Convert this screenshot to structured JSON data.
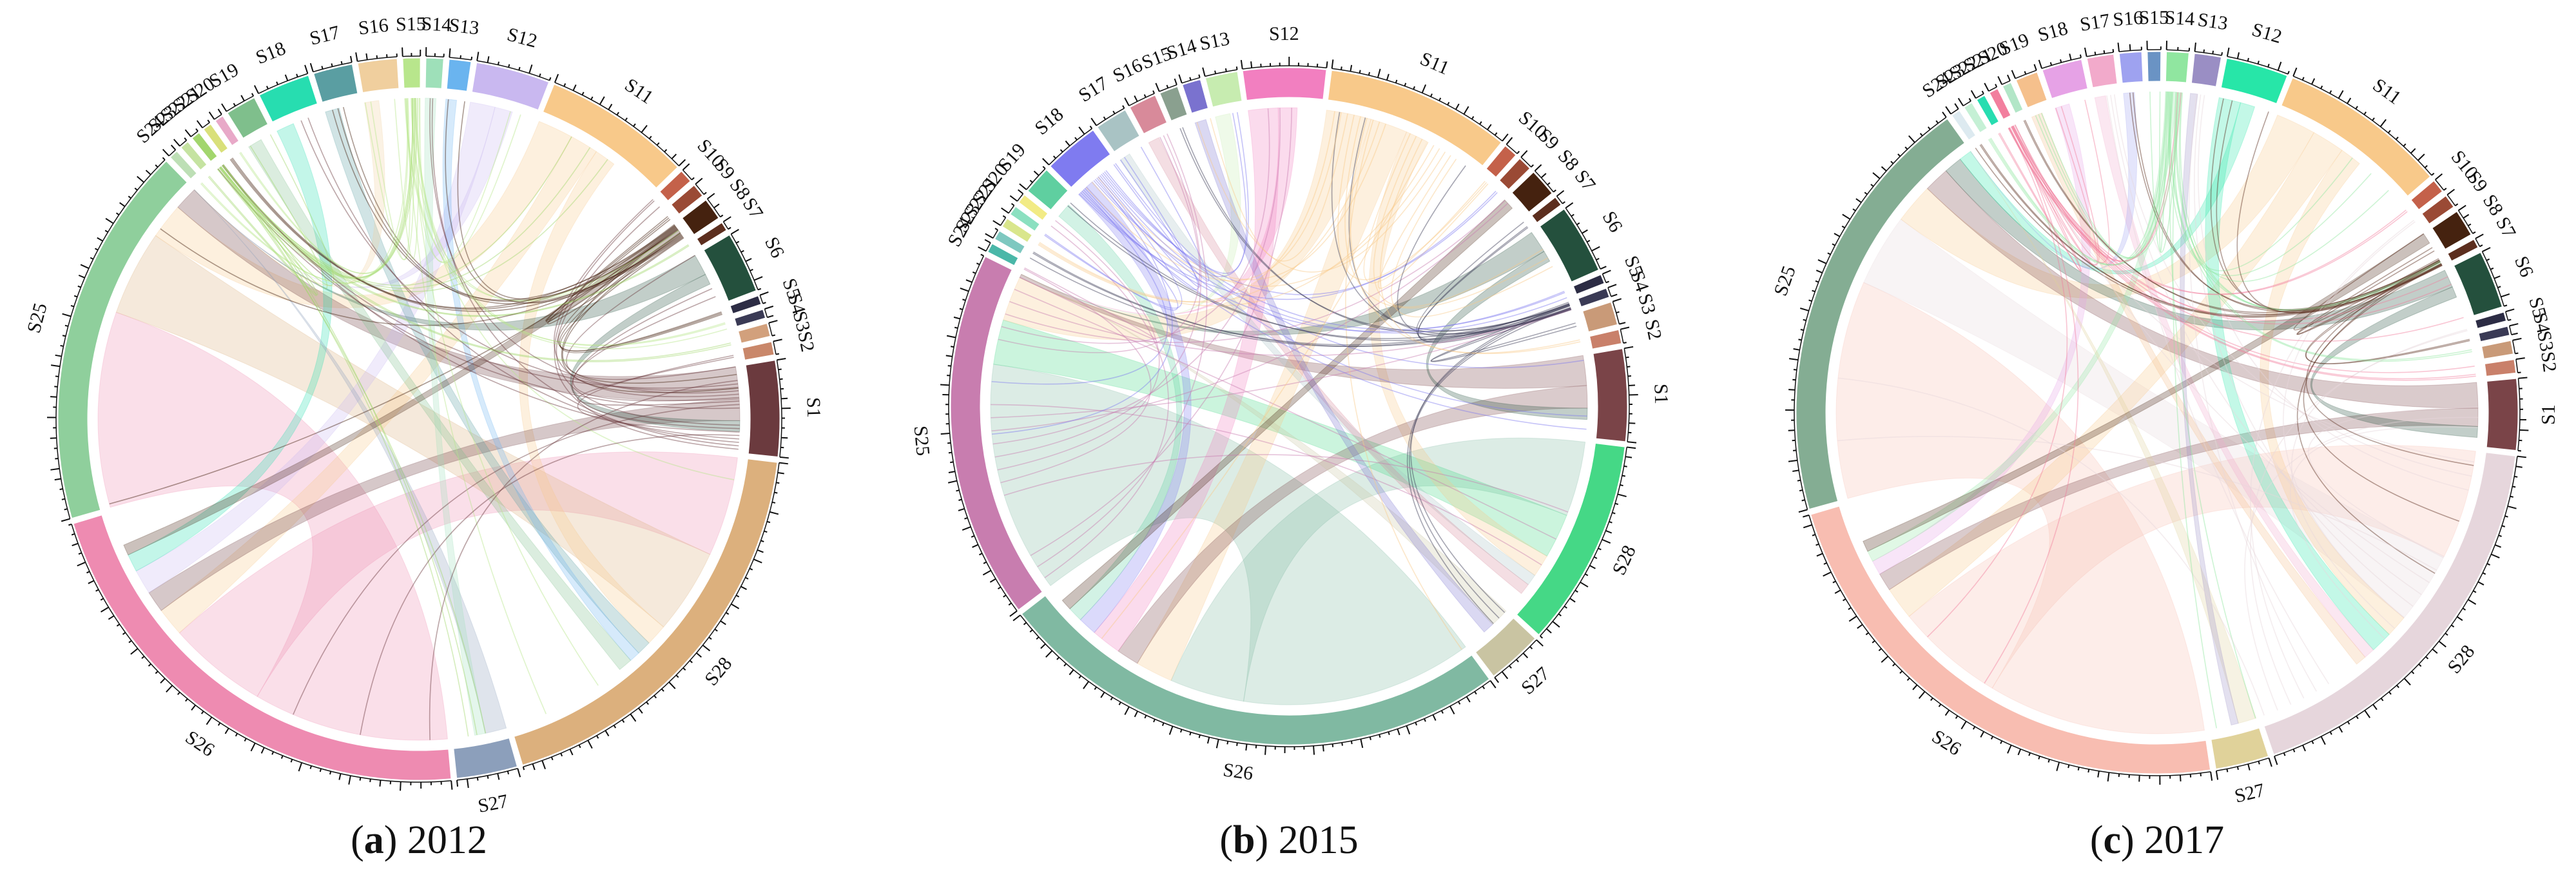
{
  "chart_data": [
    {
      "type": "chord",
      "panel_letter": "a",
      "year": "2012",
      "segments": [
        {
          "name": "S1",
          "size": 22,
          "color": "#6b3a3e"
        },
        {
          "name": "S2",
          "size": 3,
          "color": "#c9876a"
        },
        {
          "name": "S3",
          "size": 3,
          "color": "#d2a07c"
        },
        {
          "name": "S4",
          "size": 2,
          "color": "#3a3a55"
        },
        {
          "name": "S5",
          "size": 2,
          "color": "#2c2c44"
        },
        {
          "name": "S6",
          "size": 14,
          "color": "#24503d"
        },
        {
          "name": "S7",
          "size": 2,
          "color": "#5c2e1e"
        },
        {
          "name": "S8",
          "size": 5,
          "color": "#45220f"
        },
        {
          "name": "S9",
          "size": 3,
          "color": "#9a4a35"
        },
        {
          "name": "S10",
          "size": 3,
          "color": "#c4614a"
        },
        {
          "name": "S11",
          "size": 34,
          "color": "#f8c98a"
        },
        {
          "name": "S12",
          "size": 17,
          "color": "#c9b8f0"
        },
        {
          "name": "S13",
          "size": 5,
          "color": "#6ab4ef"
        },
        {
          "name": "S14",
          "size": 4,
          "color": "#9ee0b9"
        },
        {
          "name": "S15",
          "size": 4,
          "color": "#b8e68c"
        },
        {
          "name": "S16",
          "size": 9,
          "color": "#f0cf9e"
        },
        {
          "name": "S17",
          "size": 9,
          "color": "#5a9ea2"
        },
        {
          "name": "S18",
          "size": 12,
          "color": "#27ddb0"
        },
        {
          "name": "S19",
          "size": 7,
          "color": "#7fbf8c"
        },
        {
          "name": "S20",
          "size": 2,
          "color": "#e8a9c8"
        },
        {
          "name": "S21",
          "size": 2,
          "color": "#d9e07a"
        },
        {
          "name": "S22",
          "size": 2,
          "color": "#a2d66d"
        },
        {
          "name": "S23",
          "size": 2,
          "color": "#c5e3a1"
        },
        {
          "name": "S24",
          "size": 2,
          "color": "#bddfb5"
        },
        {
          "name": "S25",
          "size": 88,
          "color": "#8fcf9c"
        },
        {
          "name": "S26",
          "size": 112,
          "color": "#ee8bb1"
        },
        {
          "name": "S27",
          "size": 14,
          "color": "#8c9fbb"
        },
        {
          "name": "S28",
          "size": 95,
          "color": "#dcb07d"
        }
      ],
      "labeled": [
        "S1",
        "S6",
        "S10",
        "S11",
        "S12",
        "S13",
        "S14",
        "S15",
        "S16",
        "S17",
        "S18",
        "S19",
        "S25",
        "S26",
        "S27",
        "S28"
      ],
      "ribbons": [
        {
          "from": "S26",
          "to": "S25",
          "value": 55
        },
        {
          "from": "S26",
          "to": "S28",
          "value": 28
        },
        {
          "from": "S28",
          "to": "S25",
          "value": 24
        },
        {
          "from": "S11",
          "to": "S25",
          "value": 10
        },
        {
          "from": "S11",
          "to": "S26",
          "value": 8
        },
        {
          "from": "S11",
          "to": "S28",
          "value": 6
        },
        {
          "from": "S1",
          "to": "S25",
          "value": 9
        },
        {
          "from": "S1",
          "to": "S26",
          "value": 6
        },
        {
          "from": "S6",
          "to": "S25",
          "value": 6
        },
        {
          "from": "S6",
          "to": "S1",
          "value": 3
        },
        {
          "from": "S12",
          "to": "S26",
          "value": 7
        },
        {
          "from": "S12",
          "to": "S25",
          "value": 5
        },
        {
          "from": "S18",
          "to": "S26",
          "value": 5
        },
        {
          "from": "S17",
          "to": "S28",
          "value": 4
        },
        {
          "from": "S16",
          "to": "S25",
          "value": 4
        },
        {
          "from": "S27",
          "to": "S25",
          "value": 6
        },
        {
          "from": "S13",
          "to": "S28",
          "value": 3
        },
        {
          "from": "S19",
          "to": "S28",
          "value": 4
        },
        {
          "from": "S8",
          "to": "S26",
          "value": 3
        },
        {
          "from": "S14",
          "to": "S27",
          "value": 3
        }
      ]
    },
    {
      "type": "chord",
      "panel_letter": "b",
      "year": "2015",
      "segments": [
        {
          "name": "S1",
          "size": 20,
          "color": "#7a4448"
        },
        {
          "name": "S2",
          "size": 3,
          "color": "#c9806a"
        },
        {
          "name": "S3",
          "size": 5,
          "color": "#c99a78"
        },
        {
          "name": "S4",
          "size": 2,
          "color": "#3a3a55"
        },
        {
          "name": "S5",
          "size": 2,
          "color": "#2c2c44"
        },
        {
          "name": "S6",
          "size": 15,
          "color": "#24503d"
        },
        {
          "name": "S7",
          "size": 2,
          "color": "#5c2e1e"
        },
        {
          "name": "S8",
          "size": 6,
          "color": "#45220f"
        },
        {
          "name": "S9",
          "size": 3,
          "color": "#9a4a35"
        },
        {
          "name": "S10",
          "size": 3,
          "color": "#c4614a"
        },
        {
          "name": "S11",
          "size": 40,
          "color": "#f8c98a"
        },
        {
          "name": "S12",
          "size": 18,
          "color": "#f27fc0"
        },
        {
          "name": "S13",
          "size": 7,
          "color": "#c7ecb0"
        },
        {
          "name": "S14",
          "size": 4,
          "color": "#7a72cf"
        },
        {
          "name": "S15",
          "size": 4,
          "color": "#8aa08f"
        },
        {
          "name": "S16",
          "size": 6,
          "color": "#d88a9a"
        },
        {
          "name": "S17",
          "size": 7,
          "color": "#a9c3c4"
        },
        {
          "name": "S18",
          "size": 12,
          "color": "#7f7bf0"
        },
        {
          "name": "S19",
          "size": 6,
          "color": "#5fcfa0"
        },
        {
          "name": "S20",
          "size": 2,
          "color": "#f2eb85"
        },
        {
          "name": "S21",
          "size": 2,
          "color": "#8be0c0"
        },
        {
          "name": "S22",
          "size": 2,
          "color": "#d9e68c"
        },
        {
          "name": "S23",
          "size": 2,
          "color": "#7ec8c0"
        },
        {
          "name": "S24",
          "size": 2,
          "color": "#4ab7a8"
        },
        {
          "name": "S25",
          "size": 80,
          "color": "#c87daf"
        },
        {
          "name": "S26",
          "size": 112,
          "color": "#80b9a2"
        },
        {
          "name": "S27",
          "size": 12,
          "color": "#c9c4a2"
        },
        {
          "name": "S28",
          "size": 45,
          "color": "#45d886"
        }
      ],
      "labeled": [
        "S1",
        "S6",
        "S10",
        "S11",
        "S12",
        "S13",
        "S14",
        "S15",
        "S16",
        "S17",
        "S18",
        "S19",
        "S25",
        "S26",
        "S27",
        "S28"
      ],
      "ribbons": [
        {
          "from": "S26",
          "to": "S25",
          "value": 62
        },
        {
          "from": "S26",
          "to": "S28",
          "value": 20
        },
        {
          "from": "S28",
          "to": "S25",
          "value": 12
        },
        {
          "from": "S11",
          "to": "S25",
          "value": 12
        },
        {
          "from": "S11",
          "to": "S26",
          "value": 10
        },
        {
          "from": "S11",
          "to": "S28",
          "value": 6
        },
        {
          "from": "S1",
          "to": "S25",
          "value": 8
        },
        {
          "from": "S1",
          "to": "S26",
          "value": 6
        },
        {
          "from": "S6",
          "to": "S25",
          "value": 6
        },
        {
          "from": "S6",
          "to": "S1",
          "value": 3
        },
        {
          "from": "S12",
          "to": "S26",
          "value": 8
        },
        {
          "from": "S12",
          "to": "S25",
          "value": 5
        },
        {
          "from": "S18",
          "to": "S26",
          "value": 5
        },
        {
          "from": "S17",
          "to": "S28",
          "value": 3
        },
        {
          "from": "S13",
          "to": "S25",
          "value": 4
        },
        {
          "from": "S27",
          "to": "S25",
          "value": 5
        },
        {
          "from": "S16",
          "to": "S28",
          "value": 3
        },
        {
          "from": "S19",
          "to": "S26",
          "value": 4
        },
        {
          "from": "S8",
          "to": "S26",
          "value": 3
        },
        {
          "from": "S14",
          "to": "S27",
          "value": 3
        }
      ]
    },
    {
      "type": "chord",
      "panel_letter": "c",
      "year": "2017",
      "segments": [
        {
          "name": "S1",
          "size": 16,
          "color": "#7a4448"
        },
        {
          "name": "S2",
          "size": 3,
          "color": "#c9806a"
        },
        {
          "name": "S3",
          "size": 3,
          "color": "#c99a78"
        },
        {
          "name": "S4",
          "size": 2,
          "color": "#3a3a55"
        },
        {
          "name": "S5",
          "size": 2,
          "color": "#2c2c44"
        },
        {
          "name": "S6",
          "size": 13,
          "color": "#24503d"
        },
        {
          "name": "S7",
          "size": 2,
          "color": "#5c2e1e"
        },
        {
          "name": "S8",
          "size": 6,
          "color": "#45220f"
        },
        {
          "name": "S9",
          "size": 3,
          "color": "#9a4a35"
        },
        {
          "name": "S10",
          "size": 3,
          "color": "#c4614a"
        },
        {
          "name": "S11",
          "size": 38,
          "color": "#f8c98a"
        },
        {
          "name": "S12",
          "size": 14,
          "color": "#27e6a8"
        },
        {
          "name": "S13",
          "size": 6,
          "color": "#9a8ec4"
        },
        {
          "name": "S14",
          "size": 5,
          "color": "#90e6a0"
        },
        {
          "name": "S15",
          "size": 3,
          "color": "#6a93c4"
        },
        {
          "name": "S16",
          "size": 5,
          "color": "#9ea2f0"
        },
        {
          "name": "S17",
          "size": 6,
          "color": "#f2aacb"
        },
        {
          "name": "S18",
          "size": 9,
          "color": "#e6a2e6"
        },
        {
          "name": "S19",
          "size": 5,
          "color": "#f5c08c"
        },
        {
          "name": "S20",
          "size": 2,
          "color": "#b2e6c7"
        },
        {
          "name": "S21",
          "size": 2,
          "color": "#f27f9e"
        },
        {
          "name": "S22",
          "size": 2,
          "color": "#27ddb0"
        },
        {
          "name": "S23",
          "size": 2,
          "color": "#c5f0d5"
        },
        {
          "name": "S24",
          "size": 2,
          "color": "#ddeaf0"
        },
        {
          "name": "S25",
          "size": 98,
          "color": "#84ad93"
        },
        {
          "name": "S26",
          "size": 115,
          "color": "#f8bdb1"
        },
        {
          "name": "S27",
          "size": 12,
          "color": "#e0d29a"
        },
        {
          "name": "S28",
          "size": 90,
          "color": "#e6d6dc"
        }
      ],
      "labeled": [
        "S1",
        "S6",
        "S10",
        "S11",
        "S12",
        "S13",
        "S14",
        "S15",
        "S16",
        "S17",
        "S18",
        "S19",
        "S25",
        "S26",
        "S27",
        "S28"
      ],
      "ribbons": [
        {
          "from": "S26",
          "to": "S25",
          "value": 60
        },
        {
          "from": "S26",
          "to": "S28",
          "value": 30
        },
        {
          "from": "S28",
          "to": "S25",
          "value": 20
        },
        {
          "from": "S11",
          "to": "S25",
          "value": 11
        },
        {
          "from": "S11",
          "to": "S26",
          "value": 9
        },
        {
          "from": "S11",
          "to": "S28",
          "value": 6
        },
        {
          "from": "S1",
          "to": "S25",
          "value": 7
        },
        {
          "from": "S1",
          "to": "S26",
          "value": 5
        },
        {
          "from": "S6",
          "to": "S25",
          "value": 5
        },
        {
          "from": "S6",
          "to": "S1",
          "value": 3
        },
        {
          "from": "S12",
          "to": "S28",
          "value": 6
        },
        {
          "from": "S12",
          "to": "S25",
          "value": 4
        },
        {
          "from": "S18",
          "to": "S26",
          "value": 4
        },
        {
          "from": "S17",
          "to": "S28",
          "value": 3
        },
        {
          "from": "S14",
          "to": "S26",
          "value": 3
        },
        {
          "from": "S27",
          "to": "S25",
          "value": 5
        },
        {
          "from": "S16",
          "to": "S25",
          "value": 3
        },
        {
          "from": "S19",
          "to": "S28",
          "value": 3
        },
        {
          "from": "S8",
          "to": "S26",
          "value": 3
        },
        {
          "from": "S13",
          "to": "S27",
          "value": 2
        }
      ]
    }
  ]
}
